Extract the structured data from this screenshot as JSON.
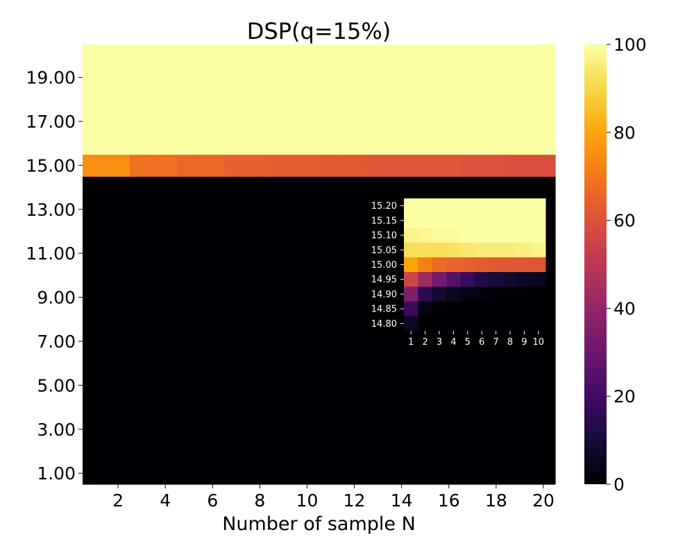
{
  "chart_data": [
    {
      "type": "heatmap",
      "title": "DSP(q=15%)",
      "xlabel": "Number of sample N",
      "ylabel": "",
      "x": [
        1,
        2,
        3,
        4,
        5,
        6,
        7,
        8,
        9,
        10,
        11,
        12,
        13,
        14,
        15,
        16,
        17,
        18,
        19,
        20
      ],
      "x_tick_labels": [
        "2",
        "4",
        "6",
        "8",
        "10",
        "12",
        "14",
        "16",
        "18",
        "20"
      ],
      "y": [
        1,
        2,
        3,
        4,
        5,
        6,
        7,
        8,
        9,
        10,
        11,
        12,
        13,
        14,
        15,
        16,
        17,
        18,
        19,
        20
      ],
      "y_tick_labels": [
        "1.00",
        "3.00",
        "5.00",
        "7.00",
        "9.00",
        "11.00",
        "13.00",
        "15.00",
        "17.00",
        "19.00"
      ],
      "colormap": "inferno",
      "vmin": 0,
      "vmax": 100,
      "colorbar_ticks": [
        "0",
        "20",
        "40",
        "60",
        "80",
        "100"
      ],
      "rows": {
        "below_15": "all 0",
        "at_15": [
          75,
          75,
          68,
          68,
          66,
          66,
          64,
          64,
          63,
          63,
          62,
          62,
          61,
          61,
          61,
          61,
          60,
          60,
          59,
          59
        ],
        "above_15": "all 100"
      }
    },
    {
      "type": "heatmap",
      "title": "",
      "note_inset": "inset zoom",
      "x": [
        1,
        2,
        3,
        4,
        5,
        6,
        7,
        8,
        9,
        10
      ],
      "x_tick_labels": [
        "1",
        "2",
        "3",
        "4",
        "5",
        "6",
        "7",
        "8",
        "9",
        "10"
      ],
      "y": [
        14.8,
        14.85,
        14.9,
        14.95,
        15.0,
        15.05,
        15.1,
        15.15,
        15.2
      ],
      "y_tick_labels": [
        "14.80",
        "14.85",
        "14.90",
        "14.95",
        "15.00",
        "15.05",
        "15.10",
        "15.15",
        "15.20"
      ],
      "colormap": "inferno",
      "vmin": 0,
      "vmax": 100,
      "values_top_to_bottom": [
        [
          100,
          100,
          100,
          100,
          100,
          100,
          100,
          100,
          100,
          100
        ],
        [
          100,
          100,
          100,
          100,
          100,
          100,
          100,
          100,
          100,
          100
        ],
        [
          97,
          98,
          99,
          99,
          100,
          100,
          100,
          100,
          100,
          100
        ],
        [
          92,
          92,
          92,
          93,
          94,
          95,
          95,
          95,
          96,
          97
        ],
        [
          80,
          72,
          67,
          65,
          64,
          63,
          62,
          62,
          61,
          61
        ],
        [
          55,
          43,
          32,
          25,
          18,
          13,
          10,
          8,
          6,
          5
        ],
        [
          35,
          15,
          8,
          5,
          3,
          2,
          1,
          1,
          1,
          0
        ],
        [
          18,
          3,
          1,
          0,
          0,
          0,
          0,
          0,
          0,
          0
        ],
        [
          6,
          0,
          0,
          0,
          0,
          0,
          0,
          0,
          0,
          0
        ]
      ]
    }
  ]
}
